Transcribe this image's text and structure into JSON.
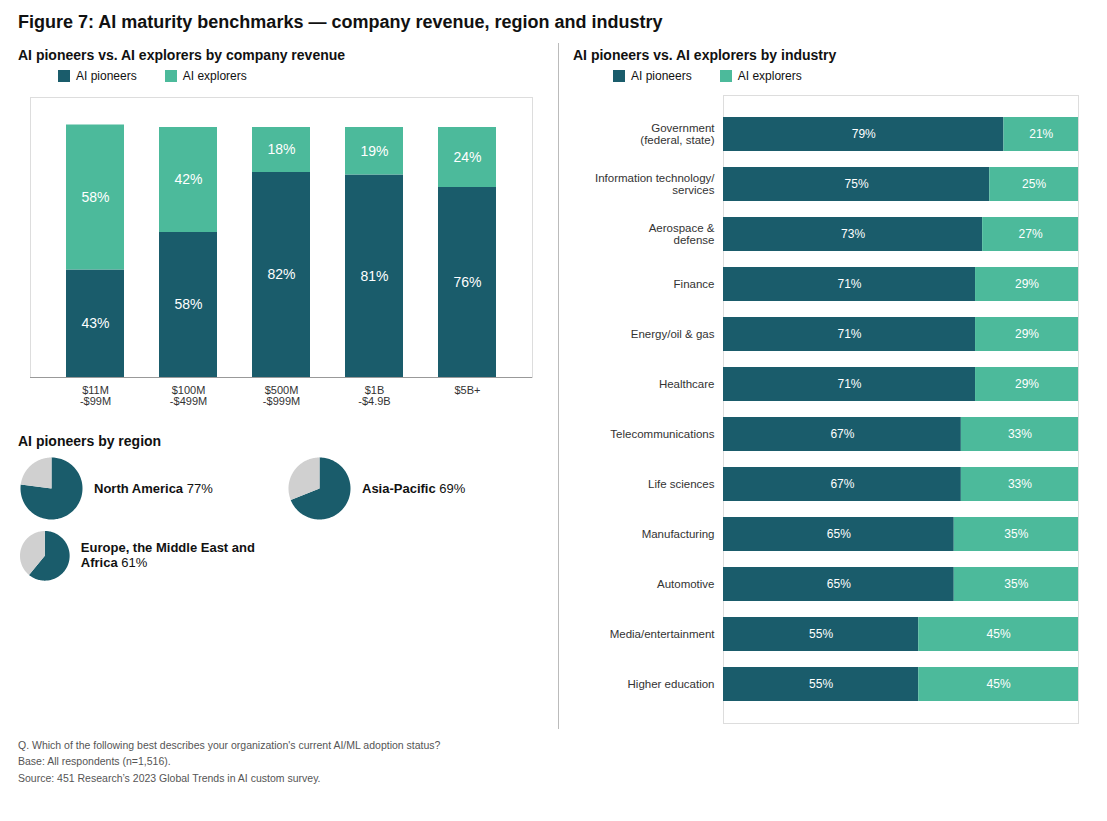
{
  "title": "Figure 7: AI maturity benchmarks — company revenue, region and industry",
  "chart_data": [
    {
      "type": "bar",
      "title": "AI pioneers vs. AI explorers by company revenue",
      "categories": [
        "$11M\n-$99M",
        "$100M\n-$499M",
        "$500M\n-$999M",
        "$1B\n-$4.9B",
        "$5B+"
      ],
      "series": [
        {
          "name": "AI pioneers",
          "color": "#1a5c6b",
          "values": [
            43,
            58,
            82,
            81,
            76
          ],
          "value_labels": [
            "43%",
            "58%",
            "82%",
            "81%",
            "76%"
          ]
        },
        {
          "name": "AI explorers",
          "color": "#4cba9b",
          "values": [
            58,
            42,
            18,
            19,
            24
          ],
          "value_labels": [
            "58%",
            "42%",
            "18%",
            "19%",
            "24%"
          ]
        }
      ],
      "stacked": true,
      "data_labels": true,
      "ylim": [
        0,
        112
      ],
      "tick_labels": "x",
      "legend": "top",
      "grid": false
    },
    {
      "type": "pie",
      "title": "AI pioneers by region",
      "categories": [
        "North America",
        "Asia-Pacific",
        "Europe, the Middle East and Africa"
      ],
      "values": [
        77,
        69,
        61
      ],
      "value_labels": [
        "77%",
        "69%",
        "61%"
      ],
      "remainder": [
        23,
        31,
        39
      ],
      "colors": [
        "#1a5c6b",
        "#d0d0d0"
      ]
    },
    {
      "type": "bar",
      "orientation": "horizontal",
      "title": "AI pioneers vs. AI explorers by industry",
      "categories": [
        "Government\n(federal, state)",
        "Information technology/\nservices",
        "Aerospace &\ndefense",
        "Finance",
        "Energy/oil & gas",
        "Healthcare",
        "Telecommunications",
        "Life sciences",
        "Manufacturing",
        "Automotive",
        "Media/entertainment",
        "Higher education"
      ],
      "series": [
        {
          "name": "AI pioneers",
          "color": "#1a5c6b",
          "values": [
            79,
            75,
            73,
            71,
            71,
            71,
            67,
            67,
            65,
            65,
            55,
            55
          ],
          "value_labels": [
            "79%",
            "75%",
            "73%",
            "71%",
            "71%",
            "71%",
            "67%",
            "67%",
            "65%",
            "65%",
            "55%",
            "55%"
          ]
        },
        {
          "name": "AI explorers",
          "color": "#4cba9b",
          "values": [
            21,
            25,
            27,
            29,
            29,
            29,
            33,
            33,
            35,
            35,
            45,
            45
          ],
          "value_labels": [
            "21%",
            "25%",
            "27%",
            "29%",
            "29%",
            "29%",
            "33%",
            "33%",
            "35%",
            "35%",
            "45%",
            "45%"
          ]
        }
      ],
      "stacked": true,
      "data_labels": true,
      "xlim": [
        0,
        100
      ],
      "tick_labels": "y",
      "legend": "top",
      "grid": false
    }
  ],
  "annotations": [
    "Q. Which of the following best describes your organization's current AI/ML adoption status?\nBase: All respondents (n=1,516).\nSource: 451 Research’s 2023 Global Trends in AI custom survey."
  ]
}
